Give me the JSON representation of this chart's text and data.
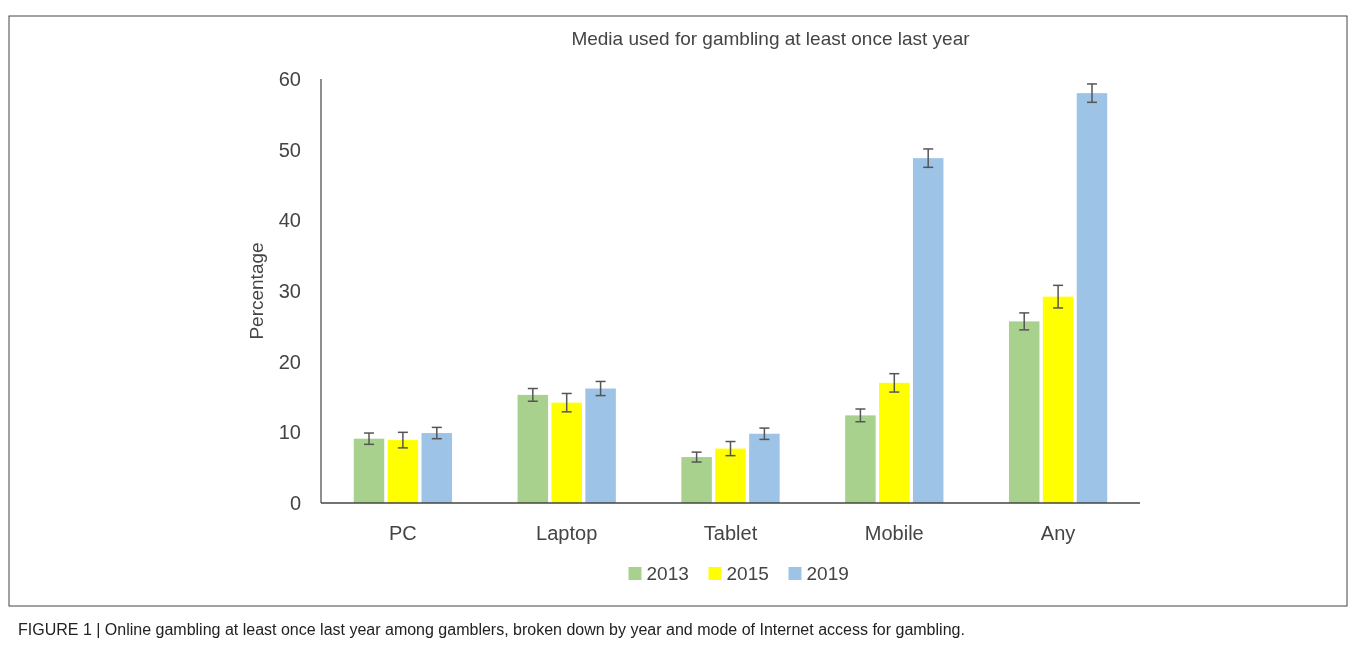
{
  "chart_data": {
    "type": "bar",
    "title": "Media used for gambling at least once last year",
    "ylabel": "Percentage",
    "categories": [
      "PC",
      "Laptop",
      "Tablet",
      "Mobile",
      "Any"
    ],
    "series": [
      {
        "name": "2013",
        "color": "#a9d18e",
        "values": [
          9.1,
          15.3,
          6.5,
          12.4,
          25.7
        ],
        "errors": [
          0.8,
          0.9,
          0.7,
          0.9,
          1.2
        ]
      },
      {
        "name": "2015",
        "color": "#ffff00",
        "values": [
          8.9,
          14.2,
          7.7,
          17.0,
          29.2
        ],
        "errors": [
          1.1,
          1.3,
          1.0,
          1.3,
          1.6
        ]
      },
      {
        "name": "2019",
        "color": "#9dc3e6",
        "values": [
          9.9,
          16.2,
          9.8,
          48.8,
          58.0
        ],
        "errors": [
          0.8,
          1.0,
          0.8,
          1.3,
          1.3
        ]
      }
    ],
    "ylim": [
      0,
      60
    ],
    "yticks": [
      0,
      10,
      20,
      30,
      40,
      50,
      60
    ],
    "grid": false,
    "legend": "bottom",
    "annotations": [
      "FIGURE 1 | Online gambling at least once last year among gamblers, broken down by year and mode of Internet access for gambling."
    ]
  }
}
